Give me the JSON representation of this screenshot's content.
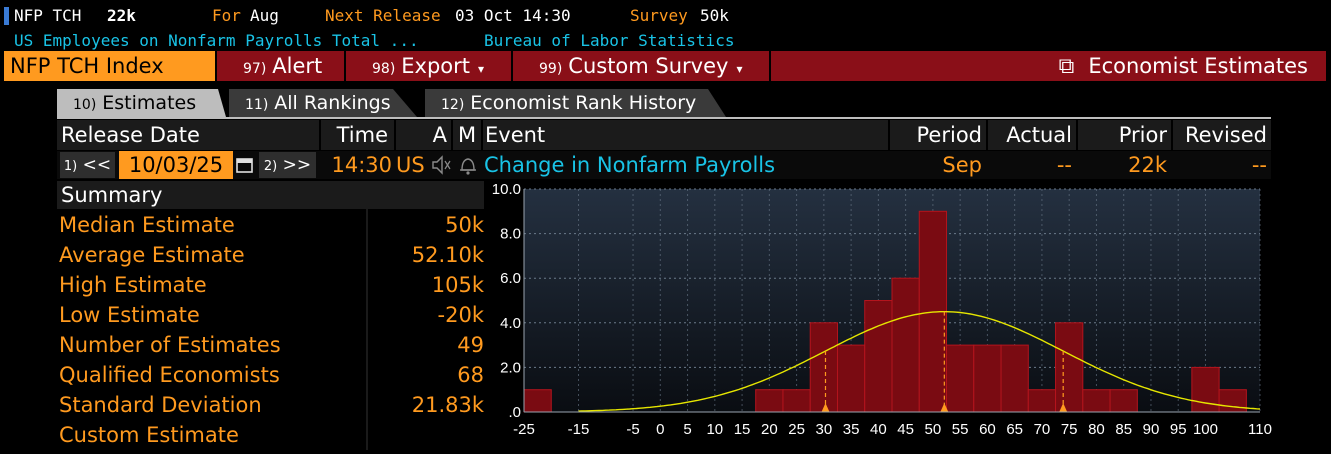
{
  "header": {
    "ticker": "NFP TCH",
    "last_value": "22k",
    "for_label": "For",
    "for_period": "Aug",
    "next_release_label": "Next Release",
    "next_release_value": "03 Oct 14:30",
    "survey_label": "Survey",
    "survey_value": "50k",
    "description": "US Employees on Nonfarm Payrolls Total ...",
    "source": "Bureau of Labor Statistics"
  },
  "function_bar": {
    "security": "NFP TCH Index",
    "alert_num": "97)",
    "alert_label": "Alert",
    "export_num": "98)",
    "export_label": "Export",
    "custom_num": "99)",
    "custom_label": "Custom Survey",
    "title": "Economist Estimates",
    "caret": "▾",
    "launch_icon": "⧉"
  },
  "tabs": [
    {
      "num": "10)",
      "label": "Estimates"
    },
    {
      "num": "11)",
      "label": "All Rankings"
    },
    {
      "num": "12)",
      "label": "Economist Rank History"
    }
  ],
  "event_table": {
    "headers": {
      "release_date": "Release Date",
      "time": "Time",
      "a": "A",
      "m": "M",
      "event": "Event",
      "period": "Period",
      "actual": "Actual",
      "prior": "Prior",
      "revised": "Revised"
    },
    "prev_num": "1)",
    "prev_glyph": "<<",
    "date": "10/03/25",
    "next_num": "2)",
    "next_glyph": ">>",
    "time": "14:30",
    "country": "US",
    "event": "Change in Nonfarm Payrolls",
    "period": "Sep",
    "actual": "--",
    "prior": "22k",
    "revised": "--"
  },
  "summary": {
    "title": "Summary",
    "rows": [
      {
        "label": "Median Estimate",
        "value": "50k"
      },
      {
        "label": "Average Estimate",
        "value": "52.10k"
      },
      {
        "label": "High Estimate",
        "value": "105k"
      },
      {
        "label": "Low Estimate",
        "value": "-20k"
      },
      {
        "label": "Number of Estimates",
        "value": "49"
      },
      {
        "label": "Qualified Economists",
        "value": "68"
      },
      {
        "label": "Standard Deviation",
        "value": "21.83k"
      },
      {
        "label": "Custom Estimate",
        "value": ""
      }
    ]
  },
  "colors": {
    "orange": "#ff9a1f",
    "cyan": "#19c3e6",
    "bar_fill": "#7a0b12",
    "bar_edge": "#b4141d",
    "curve": "#e6e600",
    "marker": "#ff9a1f"
  },
  "chart_data": {
    "type": "bar",
    "title": "",
    "xlabel": "",
    "ylabel": "",
    "xlim": [
      -25,
      110
    ],
    "ylim": [
      0,
      10
    ],
    "yticks": [
      0,
      2,
      4,
      6,
      8,
      10
    ],
    "ytick_labels": [
      ".0",
      "2.0",
      "4.0",
      "6.0",
      "8.0",
      "10.0"
    ],
    "xticks": [
      -25,
      -15,
      -5,
      0,
      5,
      10,
      15,
      20,
      25,
      30,
      35,
      40,
      45,
      50,
      55,
      60,
      65,
      70,
      75,
      80,
      85,
      90,
      95,
      100,
      110
    ],
    "bin_width": 5,
    "bins": [
      {
        "x": -22.5,
        "count": 1
      },
      {
        "x": 20,
        "count": 1
      },
      {
        "x": 25,
        "count": 1
      },
      {
        "x": 30,
        "count": 4
      },
      {
        "x": 35,
        "count": 3
      },
      {
        "x": 40,
        "count": 5
      },
      {
        "x": 45,
        "count": 6
      },
      {
        "x": 50,
        "count": 9
      },
      {
        "x": 55,
        "count": 3
      },
      {
        "x": 60,
        "count": 3
      },
      {
        "x": 65,
        "count": 3
      },
      {
        "x": 70,
        "count": 1
      },
      {
        "x": 75,
        "count": 4
      },
      {
        "x": 80,
        "count": 1
      },
      {
        "x": 85,
        "count": 1
      },
      {
        "x": 100,
        "count": 2
      },
      {
        "x": 105,
        "count": 1
      }
    ],
    "normal_curve": {
      "mean": 52.1,
      "sd": 21.83,
      "peak": 4.5,
      "x_from": -15,
      "x_to": 110
    },
    "markers": [
      30.3,
      52.1,
      73.9
    ],
    "grid": true
  }
}
